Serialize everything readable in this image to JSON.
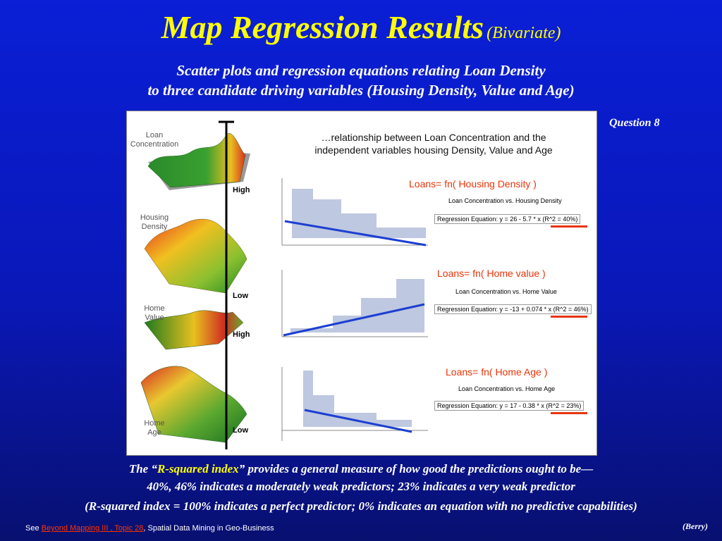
{
  "title": {
    "main": "Map Regression Results",
    "sub": "(Bivariate)"
  },
  "subtitle": {
    "line1": "Scatter plots and regression equations relating Loan Density",
    "line2": "to three candidate driving variables (Housing Density, Value and Age)"
  },
  "question": "Question 8",
  "figure": {
    "heading_line1": "…relationship between Loan Concentration and the",
    "heading_line2": "independent variables housing Density, Value and Age",
    "surfaces": {
      "loan": [
        "Loan",
        "Concentration"
      ],
      "housing": [
        "Housing",
        "Density"
      ],
      "value": [
        "Home",
        "Value"
      ],
      "age": [
        "Home",
        "Age"
      ]
    },
    "pole_labels": {
      "high1": "High",
      "low1": "Low",
      "high2": "High",
      "low2": "Low"
    },
    "plots": [
      {
        "fn": "Loans=  fn( Housing Density )",
        "chart_title": "Loan Concentration vs. Housing Density",
        "equation": "Regression Equation: y = 26 - 5.7 * x (R^2 = 40%)"
      },
      {
        "fn": "Loans=  fn( Home value )",
        "chart_title": "Loan Concentration vs. Home Value",
        "equation": "Regression Equation: y = -13 + 0.074 * x (R^2 = 46%)"
      },
      {
        "fn": "Loans=  fn( Home Age )",
        "chart_title": "Loan Concentration vs. Home Age",
        "equation": "Regression Equation: y = 17 - 0.38 * x (R^2 = 23%)"
      }
    ]
  },
  "bottom": {
    "line1_pre": "The “",
    "line1_highlight": "R-squared index",
    "line1_post": "” provides a general measure of how good the predictions ought to be—",
    "line2": "40%, 46% indicates a moderately weak predictors; 23% indicates a very weak predictor",
    "line3": "(R-squared index = 100% indicates a perfect predictor; 0% indicates an equation with no predictive capabilities)"
  },
  "footer": {
    "see": "See ",
    "link": "Beyond Mapping III , Topic 28",
    "rest": ", Spatial Data Mining in Geo-Business"
  },
  "author": "(Berry)",
  "colors": {
    "background": "#0a1fd6",
    "title": "#ffff00",
    "fn_text": "#e8340a",
    "regression_line": "#1c3fd0"
  }
}
